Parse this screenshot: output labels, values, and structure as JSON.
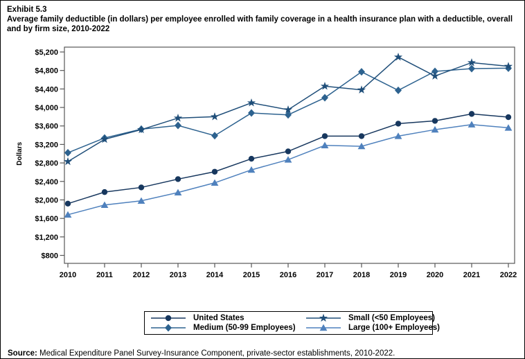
{
  "chart_data": {
    "type": "line",
    "exhibit": "Exhibit 5.3",
    "title": "Average family deductible (in dollars) per employee enrolled with family coverage in a health insurance plan with a deductible, overall and by firm size, 2010-2022",
    "ylabel": "Dollars",
    "xlabel": "",
    "x": [
      "2010",
      "2011",
      "2012",
      "2013",
      "2014",
      "2015",
      "2016",
      "2017",
      "2018",
      "2019",
      "2020",
      "2021",
      "2022"
    ],
    "ylim": [
      800,
      5200
    ],
    "ytick_step": 400,
    "y_tick_labels": [
      "$800",
      "$1,200",
      "$1,600",
      "$2,000",
      "$2,400",
      "$2,800",
      "$3,200",
      "$3,600",
      "$4,000",
      "$4,400",
      "$4,800",
      "$5,200"
    ],
    "grid": false,
    "legend_position": "bottom",
    "series": [
      {
        "name": "United States",
        "marker": "circle",
        "color": "#17375e",
        "values": [
          1920,
          2170,
          2270,
          2450,
          2610,
          2890,
          3050,
          3380,
          3380,
          3650,
          3710,
          3860,
          3790
        ]
      },
      {
        "name": "Small (<50 Employees)",
        "marker": "star",
        "color": "#1f4e79",
        "values": [
          2830,
          3310,
          3520,
          3770,
          3800,
          4100,
          3950,
          4460,
          4380,
          5090,
          4680,
          4970,
          4890
        ]
      },
      {
        "name": "Medium (50-99 Employees)",
        "marker": "diamond",
        "color": "#2d628f",
        "values": [
          3020,
          3340,
          3530,
          3610,
          3390,
          3880,
          3840,
          4210,
          4770,
          4370,
          4780,
          4840,
          4850
        ]
      },
      {
        "name": "Large (100+ Employees)",
        "marker": "triangle",
        "color": "#4f81bd",
        "values": [
          1680,
          1890,
          1980,
          2160,
          2370,
          2650,
          2870,
          3180,
          3160,
          3380,
          3520,
          3630,
          3560
        ]
      }
    ]
  },
  "source": {
    "label": "Source:",
    "text": " Medical Expenditure Panel Survey-Insurance Component, private-sector establishments, 2010-2022."
  }
}
